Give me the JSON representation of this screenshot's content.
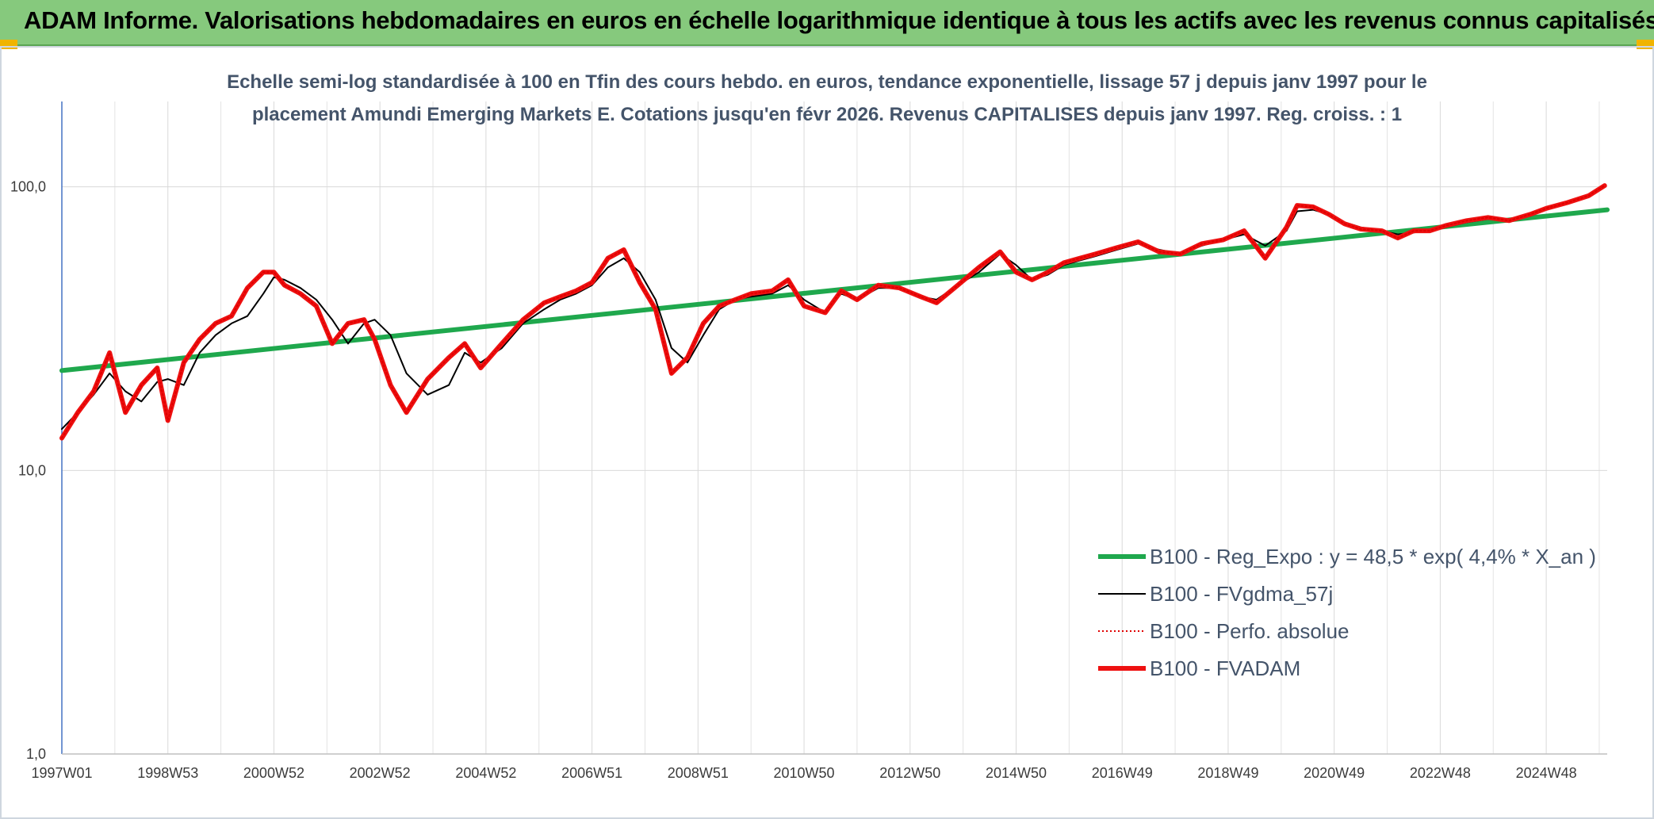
{
  "header": {
    "title": "ADAM Informe. Valorisations hebdomadaires en euros en échelle logarithmique identique à tous les actifs avec les revenus connus capitalisés"
  },
  "colors": {
    "banner": "#86c97d",
    "trend": "#1fa84d",
    "smooth": "#000000",
    "absolute": "#e00000",
    "adam": "#ee1111",
    "corner": "#f0b400"
  },
  "chart_data": {
    "type": "line",
    "title": "",
    "subtitle_lines": [
      "Echelle semi-log standardisée à 100 en Tfin des cours hebdo. en euros, tendance exponentielle, lissage 57 j depuis janv 1997 pour le",
      "placement Amundi Emerging Markets E. Cotations jusqu'en févr 2026. Revenus CAPITALISES depuis janv 1997. Reg. croiss. : 1"
    ],
    "y_scale": "log",
    "ylim": [
      1,
      200
    ],
    "y_ticks": [
      {
        "value": 1,
        "label": "1,0"
      },
      {
        "value": 10,
        "label": "10,0"
      },
      {
        "value": 100,
        "label": "100,0"
      }
    ],
    "xlim": [
      1997.0,
      2026.15
    ],
    "x_ticks": [
      {
        "t": 1997.0,
        "label": "1997W01"
      },
      {
        "t": 1999.0,
        "label": "1998W53"
      },
      {
        "t": 2001.0,
        "label": "2000W52"
      },
      {
        "t": 2003.0,
        "label": "2002W52"
      },
      {
        "t": 2005.0,
        "label": "2004W52"
      },
      {
        "t": 2007.0,
        "label": "2006W51"
      },
      {
        "t": 2009.0,
        "label": "2008W51"
      },
      {
        "t": 2011.0,
        "label": "2010W50"
      },
      {
        "t": 2013.0,
        "label": "2012W50"
      },
      {
        "t": 2015.0,
        "label": "2014W50"
      },
      {
        "t": 2017.0,
        "label": "2016W49"
      },
      {
        "t": 2019.0,
        "label": "2018W49"
      },
      {
        "t": 2021.0,
        "label": "2020W49"
      },
      {
        "t": 2023.0,
        "label": "2022W48"
      },
      {
        "t": 2025.0,
        "label": "2024W48"
      }
    ],
    "grid": "vertical-and-horizontal",
    "legend_position": "bottom-right",
    "series": [
      {
        "name": "B100 - Reg_Expo : y = 48,5 * exp( 4,4% *  X_an )",
        "color": "#1fa84d",
        "style": "thick",
        "x": [
          1997.0,
          2026.15
        ],
        "y": [
          22.5,
          83
        ]
      },
      {
        "name": "B100 - FVgdma_57j",
        "color": "#000000",
        "style": "thin",
        "x": [
          1997.0,
          1997.3,
          1997.6,
          1997.9,
          1998.2,
          1998.5,
          1998.8,
          1999.0,
          1999.3,
          1999.6,
          1999.9,
          2000.2,
          2000.5,
          2000.8,
          2001.0,
          2001.2,
          2001.5,
          2001.8,
          2002.1,
          2002.4,
          2002.7,
          2002.9,
          2003.2,
          2003.5,
          2003.9,
          2004.3,
          2004.6,
          2004.9,
          2005.3,
          2005.7,
          2006.1,
          2006.4,
          2006.7,
          2007.0,
          2007.3,
          2007.6,
          2007.9,
          2008.2,
          2008.5,
          2008.8,
          2009.1,
          2009.4,
          2009.7,
          2010.0,
          2010.4,
          2010.7,
          2011.0,
          2011.4,
          2011.7,
          2012.0,
          2012.4,
          2012.8,
          2013.2,
          2013.5,
          2013.9,
          2014.3,
          2014.7,
          2015.0,
          2015.3,
          2015.6,
          2015.9,
          2016.2,
          2016.5,
          2016.9,
          2017.3,
          2017.7,
          2018.1,
          2018.5,
          2018.9,
          2019.3,
          2019.7,
          2020.1,
          2020.3,
          2020.6,
          2020.9,
          2021.2,
          2021.5,
          2021.9,
          2022.2,
          2022.5,
          2022.8,
          2023.1,
          2023.5,
          2023.9,
          2024.3,
          2024.7,
          2025.0,
          2025.4,
          2025.8,
          2026.1
        ],
        "y": [
          14,
          16,
          18.5,
          22,
          19,
          17.5,
          20.5,
          21,
          20,
          26,
          30,
          33,
          35,
          42,
          48,
          47,
          44,
          40,
          34,
          28,
          33,
          34,
          30,
          22,
          18.5,
          20,
          26,
          24,
          27,
          33,
          37,
          40,
          42,
          45,
          52,
          56,
          50,
          40,
          27,
          24,
          30,
          37,
          40,
          41,
          42,
          45,
          40,
          36,
          42,
          40,
          44,
          44,
          41,
          40,
          45,
          50,
          58,
          53,
          47,
          49,
          53,
          55,
          57,
          60,
          63,
          60,
          58,
          62,
          65,
          68,
          62,
          70,
          82,
          83,
          80,
          75,
          72,
          70,
          68,
          69,
          70,
          72,
          75,
          77,
          77,
          79,
          83,
          88,
          92,
          100
        ]
      },
      {
        "name": "B100 - Perfo. absolue",
        "color": "#e00000",
        "style": "dotted",
        "x": [
          1997.0,
          1997.3,
          1997.6,
          1997.9,
          1998.2,
          1998.5,
          1998.8,
          1999.0,
          1999.3,
          1999.6,
          1999.9,
          2000.2,
          2000.5,
          2000.8,
          2001.0,
          2001.2,
          2001.5,
          2001.8,
          2002.1,
          2002.4,
          2002.7,
          2002.9,
          2003.2,
          2003.5,
          2003.9,
          2004.3,
          2004.6,
          2004.9,
          2005.3,
          2005.7,
          2006.1,
          2006.4,
          2006.7,
          2007.0,
          2007.3,
          2007.6,
          2007.9,
          2008.2,
          2008.5,
          2008.8,
          2009.1,
          2009.4,
          2009.7,
          2010.0,
          2010.4,
          2010.7,
          2011.0,
          2011.4,
          2011.7,
          2012.0,
          2012.4,
          2012.8,
          2013.2,
          2013.5,
          2013.9,
          2014.3,
          2014.7,
          2015.0,
          2015.3,
          2015.6,
          2015.9,
          2016.2,
          2016.5,
          2016.9,
          2017.3,
          2017.7,
          2018.1,
          2018.5,
          2018.9,
          2019.3,
          2019.7,
          2020.1,
          2020.3,
          2020.6,
          2020.9,
          2021.2,
          2021.5,
          2021.9,
          2022.2,
          2022.5,
          2022.8,
          2023.1,
          2023.5,
          2023.9,
          2024.3,
          2024.7,
          2025.0,
          2025.4,
          2025.8,
          2026.1
        ],
        "y": [
          13,
          16,
          19,
          26,
          16,
          20,
          23,
          15,
          24,
          29,
          33,
          35,
          44,
          50,
          50,
          45,
          42,
          38,
          28,
          33,
          34,
          29,
          20,
          16,
          21,
          25,
          28,
          23,
          28,
          34,
          39,
          41,
          43,
          46,
          56,
          60,
          46,
          37,
          22,
          25,
          33,
          38,
          40,
          42,
          43,
          47,
          38,
          36,
          43,
          40,
          45,
          44,
          41,
          39,
          45,
          52,
          59,
          50,
          47,
          50,
          54,
          56,
          58,
          61,
          64,
          59,
          58,
          63,
          65,
          70,
          56,
          72,
          86,
          85,
          80,
          74,
          71,
          70,
          66,
          70,
          70,
          73,
          76,
          78,
          76,
          80,
          84,
          88,
          93,
          101
        ]
      },
      {
        "name": "B100 - FVADAM",
        "color": "#ee1111",
        "style": "thick",
        "x": [
          1997.0,
          1997.3,
          1997.6,
          1997.9,
          1998.2,
          1998.5,
          1998.8,
          1999.0,
          1999.3,
          1999.6,
          1999.9,
          2000.2,
          2000.5,
          2000.8,
          2001.0,
          2001.2,
          2001.5,
          2001.8,
          2002.1,
          2002.4,
          2002.7,
          2002.9,
          2003.2,
          2003.5,
          2003.9,
          2004.3,
          2004.6,
          2004.9,
          2005.3,
          2005.7,
          2006.1,
          2006.4,
          2006.7,
          2007.0,
          2007.3,
          2007.6,
          2007.9,
          2008.2,
          2008.5,
          2008.8,
          2009.1,
          2009.4,
          2009.7,
          2010.0,
          2010.4,
          2010.7,
          2011.0,
          2011.4,
          2011.7,
          2012.0,
          2012.4,
          2012.8,
          2013.2,
          2013.5,
          2013.9,
          2014.3,
          2014.7,
          2015.0,
          2015.3,
          2015.6,
          2015.9,
          2016.2,
          2016.5,
          2016.9,
          2017.3,
          2017.7,
          2018.1,
          2018.5,
          2018.9,
          2019.3,
          2019.7,
          2020.1,
          2020.3,
          2020.6,
          2020.9,
          2021.2,
          2021.5,
          2021.9,
          2022.2,
          2022.5,
          2022.8,
          2023.1,
          2023.5,
          2023.9,
          2024.3,
          2024.7,
          2025.0,
          2025.4,
          2025.8,
          2026.1
        ],
        "y": [
          13,
          16,
          19,
          26,
          16,
          20,
          23,
          15,
          24,
          29,
          33,
          35,
          44,
          50,
          50,
          45,
          42,
          38,
          28,
          33,
          34,
          29,
          20,
          16,
          21,
          25,
          28,
          23,
          28,
          34,
          39,
          41,
          43,
          46,
          56,
          60,
          46,
          37,
          22,
          25,
          33,
          38,
          40,
          42,
          43,
          47,
          38,
          36,
          43,
          40,
          45,
          44,
          41,
          39,
          45,
          52,
          59,
          50,
          47,
          50,
          54,
          56,
          58,
          61,
          64,
          59,
          58,
          63,
          65,
          70,
          56,
          72,
          86,
          85,
          80,
          74,
          71,
          70,
          66,
          70,
          70,
          73,
          76,
          78,
          76,
          80,
          84,
          88,
          93,
          101
        ]
      }
    ]
  }
}
